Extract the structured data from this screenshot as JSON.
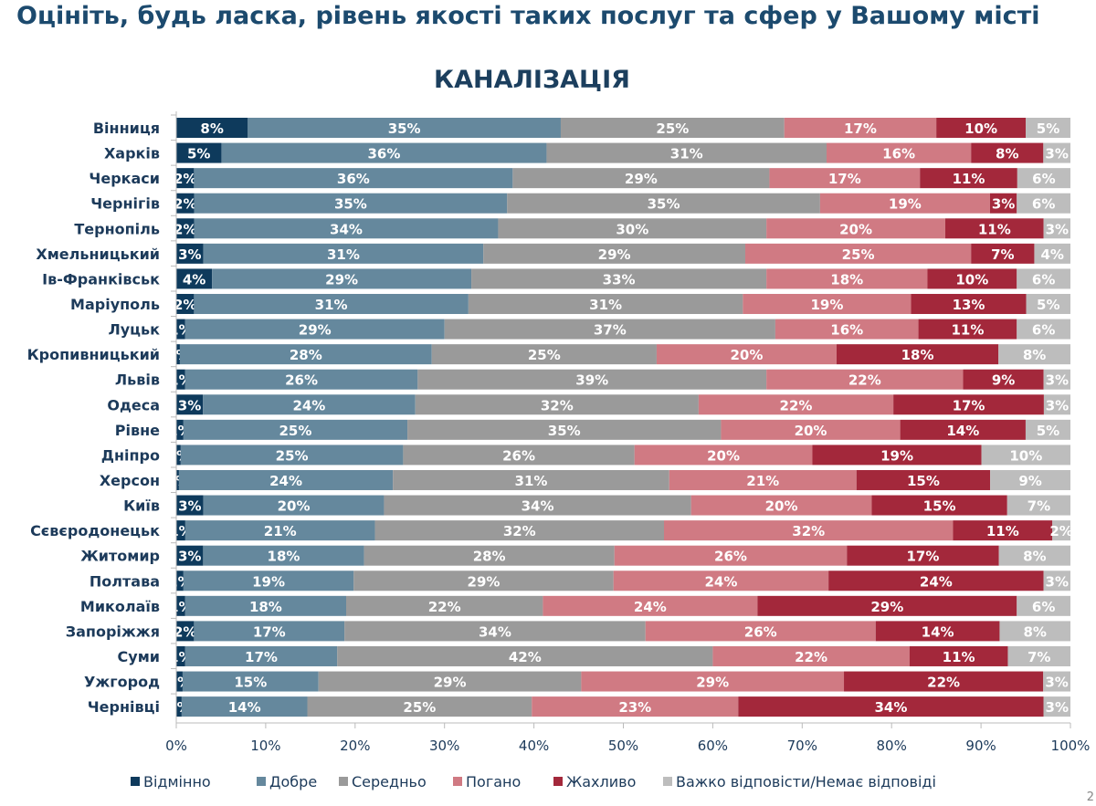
{
  "header": {
    "title": "Оцініть, будь ласка, рівень якості таких послуг та сфер у Вашому місті",
    "page_number": "2"
  },
  "chart_data": {
    "type": "bar",
    "orientation": "horizontal",
    "stacked": true,
    "percent": true,
    "title": "КАНАЛІЗАЦІЯ",
    "xlim": [
      0,
      100
    ],
    "xticks": [
      "0%",
      "10%",
      "20%",
      "30%",
      "40%",
      "50%",
      "60%",
      "70%",
      "80%",
      "90%",
      "100%"
    ],
    "legend_position": "bottom",
    "categories": [
      "Вінниця",
      "Харків",
      "Черкаси",
      "Чернігів",
      "Тернопіль",
      "Хмельницький",
      "Ів-Франківськ",
      "Маріуполь",
      "Луцьк",
      "Кропивницький",
      "Львів",
      "Одеса",
      "Рівне",
      "Дніпро",
      "Херсон",
      "Київ",
      "Сєвєродонецьк",
      "Житомир",
      "Полтава",
      "Миколаїв",
      "Запоріжжя",
      "Суми",
      "Ужгород",
      "Чернівці"
    ],
    "series": [
      {
        "name": "Відмінно",
        "color": "#0e3a5c",
        "values": [
          8,
          5,
          2,
          2,
          2,
          3,
          4,
          2,
          1,
          0.4,
          1,
          3,
          0.8,
          0.5,
          0.3,
          3,
          1,
          3,
          0.8,
          1,
          2,
          1,
          0.7,
          0.6
        ]
      },
      {
        "name": "Добре",
        "color": "#65889d",
        "values": [
          35,
          36,
          36,
          35,
          34,
          31,
          29,
          31,
          29,
          28,
          26,
          24,
          25,
          25,
          24,
          20,
          21,
          18,
          19,
          18,
          17,
          17,
          15,
          14
        ]
      },
      {
        "name": "Середньо",
        "color": "#9a9a9a",
        "values": [
          25,
          31,
          29,
          35,
          30,
          29,
          33,
          31,
          37,
          25,
          39,
          32,
          35,
          26,
          31,
          34,
          32,
          28,
          29,
          22,
          34,
          42,
          29,
          25
        ]
      },
      {
        "name": "Погано",
        "color": "#d07a83",
        "values": [
          17,
          16,
          17,
          19,
          20,
          25,
          18,
          19,
          16,
          20,
          22,
          22,
          20,
          20,
          21,
          20,
          32,
          26,
          24,
          24,
          26,
          22,
          29,
          23
        ]
      },
      {
        "name": "Жахливо",
        "color": "#a3283b",
        "values": [
          10,
          8,
          11,
          3,
          11,
          7,
          10,
          13,
          11,
          18,
          9,
          17,
          14,
          19,
          15,
          15,
          11,
          17,
          24,
          29,
          14,
          11,
          22,
          34
        ]
      },
      {
        "name": "Важко відповісти/Немає відповіді",
        "color": "#bdbdbd",
        "values": [
          5,
          3,
          6,
          6,
          3,
          4,
          6,
          5,
          6,
          8,
          3,
          3,
          5,
          10,
          9,
          7,
          2,
          8,
          3,
          6,
          8,
          7,
          3,
          3
        ]
      }
    ]
  }
}
